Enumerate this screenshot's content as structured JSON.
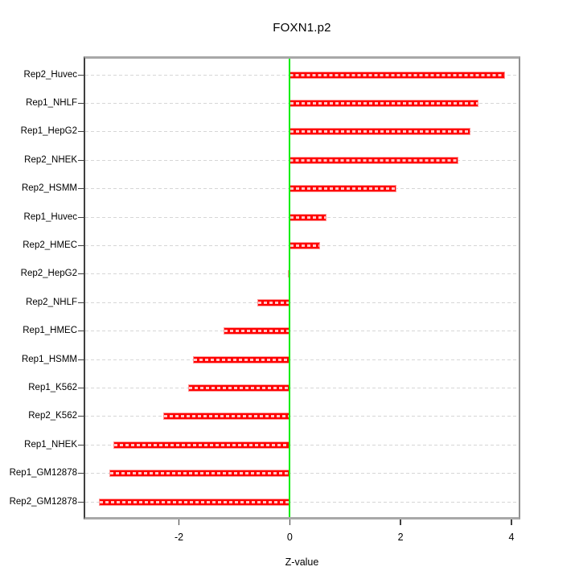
{
  "figure": {
    "title": "FOXN1.p2",
    "xlabel": "Z-value"
  },
  "chart_data": {
    "type": "bar",
    "orientation": "horizontal",
    "title": "FOXN1.p2",
    "xlabel": "Z-value",
    "ylabel": "",
    "categories": [
      "Rep2_Huvec",
      "Rep1_NHLF",
      "Rep1_HepG2",
      "Rep2_NHEK",
      "Rep2_HSMM",
      "Rep1_Huvec",
      "Rep2_HMEC",
      "Rep2_HepG2",
      "Rep2_NHLF",
      "Rep1_HMEC",
      "Rep1_HSMM",
      "Rep1_K562",
      "Rep2_K562",
      "Rep1_NHEK",
      "Rep1_GM12878",
      "Rep2_GM12878"
    ],
    "values": [
      3.88,
      3.41,
      3.26,
      3.04,
      1.93,
      0.67,
      0.55,
      -0.03,
      -0.59,
      -1.2,
      -1.75,
      -1.83,
      -2.28,
      -3.19,
      -3.25,
      -3.44
    ],
    "xticks": [
      -2,
      0,
      2,
      4
    ],
    "xlim": [
      -3.72,
      4.16
    ],
    "zero_reference_line": 0,
    "grid": "horizontal-dashed-per-category",
    "legend_position": "none",
    "colors": {
      "bar_fill": "#ff0000",
      "bar_edge": "#ff9494",
      "bar_dash": "#ffc8c8",
      "zero_line": "#00ee00",
      "grid_line": "#d6d6d6",
      "frame_horizontal": "#a8a8a8",
      "frame_vertical": "#3f3f3f",
      "text": "#000000"
    }
  }
}
